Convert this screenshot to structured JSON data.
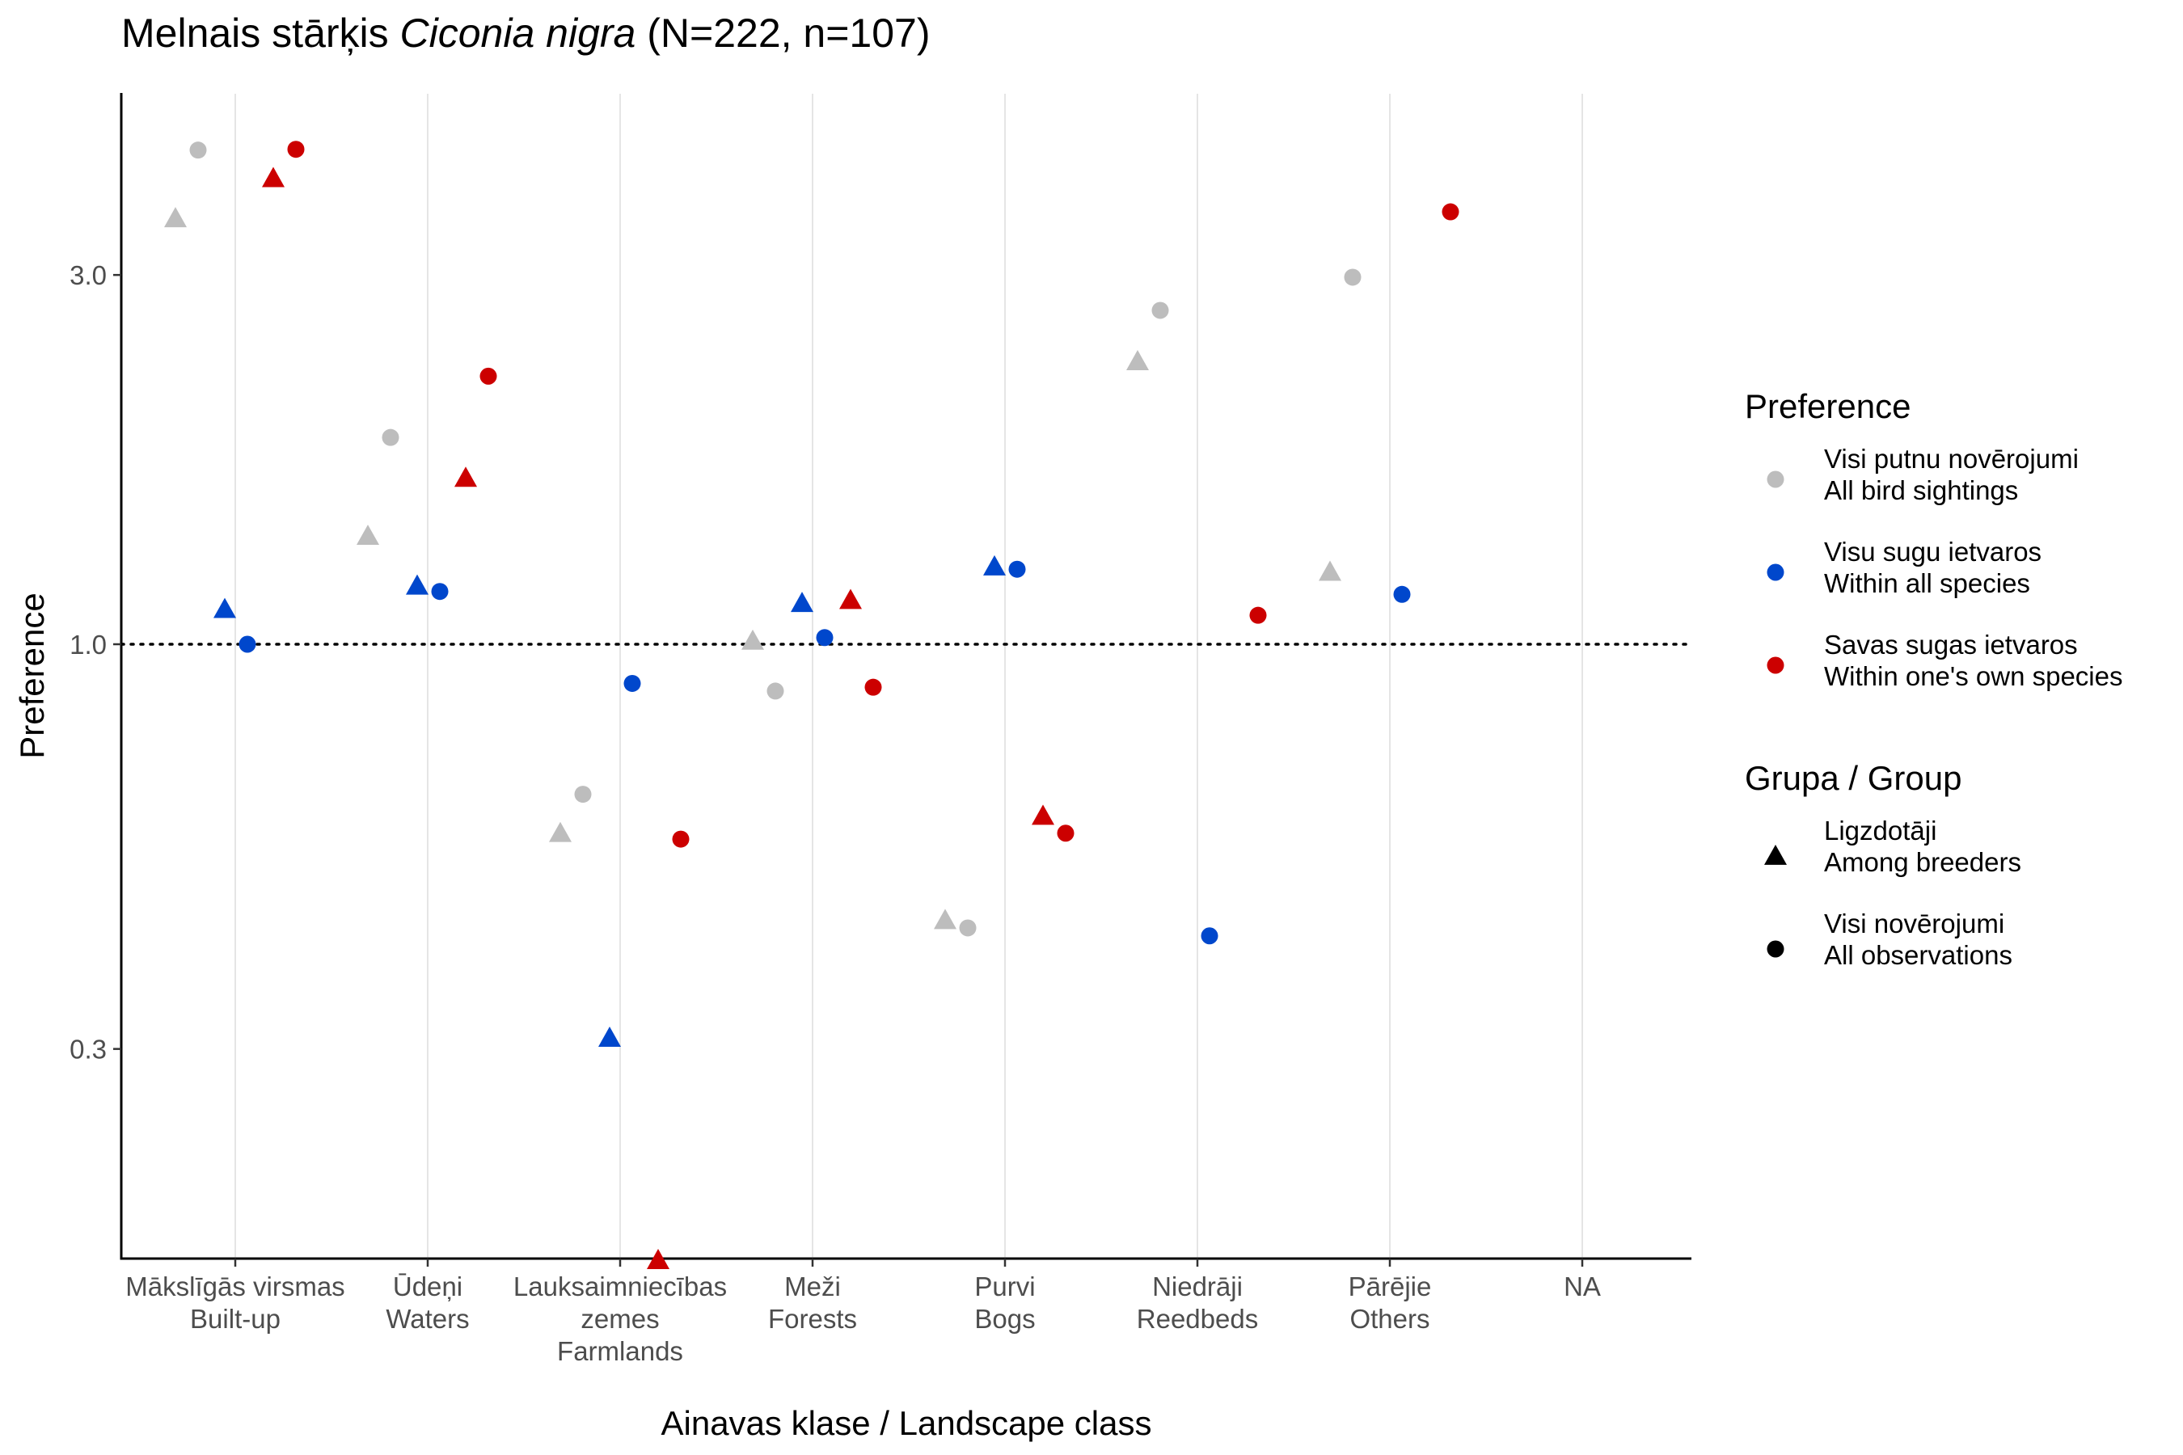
{
  "chart_data": {
    "type": "scatter",
    "title": {
      "prefix": "Melnais stārķis ",
      "italic": "Ciconia nigra",
      "suffix": " (N=222, n=107)"
    },
    "xlabel": "Ainavas klase / Landscape class",
    "ylabel": "Preference",
    "y_scale": "log",
    "ylim": [
      0.125,
      5.0
    ],
    "y_ticks": [
      {
        "value": 0.3,
        "label": "0.3"
      },
      {
        "value": 1.0,
        "label": "1.0"
      },
      {
        "value": 3.0,
        "label": "3.0"
      }
    ],
    "reference_line": {
      "y": 1.0,
      "style": "dotted"
    },
    "grid": {
      "vertical_major": true,
      "horizontal": false
    },
    "categories": [
      {
        "lines": [
          "Mākslīgās virsmas",
          "Built-up"
        ]
      },
      {
        "lines": [
          "Ūdeņi",
          "Waters"
        ]
      },
      {
        "lines": [
          "Lauksaimniecības",
          "zemes",
          "Farmlands"
        ]
      },
      {
        "lines": [
          "Meži",
          "Forests"
        ]
      },
      {
        "lines": [
          "Purvi",
          "Bogs"
        ]
      },
      {
        "lines": [
          "Niedrāji",
          "Reedbeds"
        ]
      },
      {
        "lines": [
          "Pārējie",
          "Others"
        ]
      },
      {
        "lines": [
          "NA"
        ]
      }
    ],
    "series": [
      {
        "name": "Visi putnu novērojumi / All bird sightings",
        "color": "#bdbdbd",
        "triangle": [
          3.55,
          1.38,
          0.57,
          1.01,
          0.44,
          2.32,
          1.24,
          null
        ],
        "circle": [
          4.35,
          1.85,
          0.64,
          0.87,
          0.43,
          2.7,
          2.98,
          null
        ]
      },
      {
        "name": "Visu sugu ietvaros / Within all species",
        "color": "#0047cc",
        "triangle": [
          1.11,
          1.19,
          0.31,
          1.13,
          1.26,
          null,
          null,
          null
        ],
        "circle": [
          1.0,
          1.17,
          0.89,
          1.02,
          1.25,
          0.42,
          1.16,
          null
        ]
      },
      {
        "name": "Savas sugas ietvaros / Within one's own species",
        "color": "#cc0000",
        "triangle": [
          4.0,
          1.64,
          0.16,
          1.14,
          0.6,
          null,
          null,
          null
        ],
        "circle": [
          4.36,
          2.22,
          0.56,
          0.88,
          0.57,
          1.09,
          3.62,
          null
        ]
      }
    ],
    "legend": {
      "placement": "right",
      "color_title": "Preference",
      "color_items": [
        {
          "line1": "Visi putnu novērojumi",
          "line2": "All bird sightings",
          "color": "#bdbdbd"
        },
        {
          "line1": "Visu sugu ietvaros",
          "line2": "Within all species",
          "color": "#0047cc"
        },
        {
          "line1": "Savas sugas ietvaros",
          "line2": "Within one's own species",
          "color": "#cc0000"
        }
      ],
      "shape_title": "Grupa / Group",
      "shape_items": [
        {
          "line1": "Ligzdotāji",
          "line2": "Among breeders",
          "shape": "triangle"
        },
        {
          "line1": "Visi novērojumi",
          "line2": "All observations",
          "shape": "circle"
        }
      ]
    }
  }
}
